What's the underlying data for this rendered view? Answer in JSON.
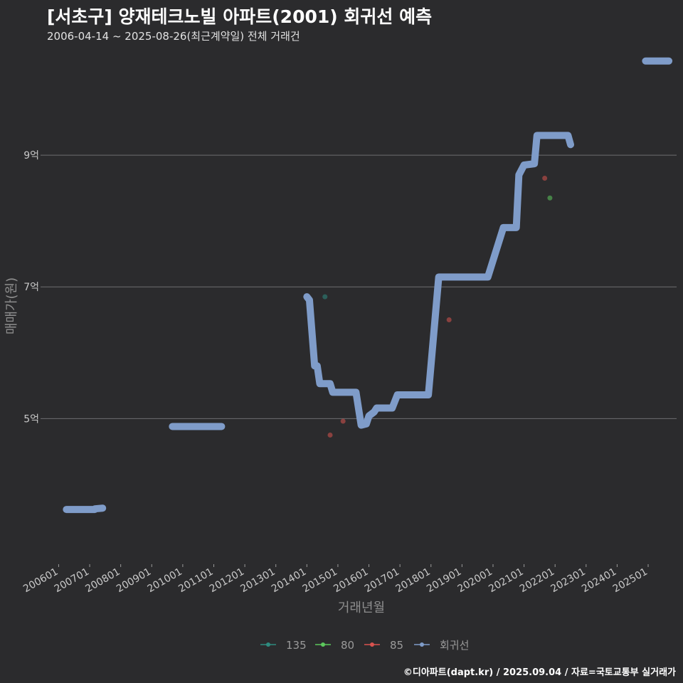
{
  "title": "[서초구] 양재테크노빌 아파트(2001) 회귀선 예측",
  "subtitle": "2006-04-14 ~ 2025-08-26(최근계약일) 전체 거래건",
  "credit": "©디아파트(dapt.kr) / 2025.09.04 / 자료=국토교통부 실거래가",
  "chart_data": {
    "type": "scatter",
    "xlabel": "거래년월",
    "ylabel": "매매가(원)",
    "x_ticks": [
      "200601",
      "200701",
      "200801",
      "200901",
      "201001",
      "201101",
      "201201",
      "201301",
      "201401",
      "201501",
      "201601",
      "201701",
      "201801",
      "201901",
      "202001",
      "202101",
      "202201",
      "202301",
      "202401",
      "202501"
    ],
    "y_ticks": [
      {
        "value": 500000000,
        "label": "5억"
      },
      {
        "value": 700000000,
        "label": "7억"
      },
      {
        "value": 900000000,
        "label": "9억"
      }
    ],
    "xlim": [
      "2005-06",
      "2025-12"
    ],
    "ylim": [
      280000000,
      1060000000
    ],
    "grid": true,
    "legend_position": "bottom",
    "series": [
      {
        "name": "135",
        "kind": "points",
        "color": "#2e8b7f",
        "points": [
          {
            "x": "2014-08",
            "y": 685000000
          }
        ]
      },
      {
        "name": "80",
        "kind": "points",
        "color": "#5cc85c",
        "points": [
          {
            "x": "2021-11",
            "y": 835000000
          }
        ]
      },
      {
        "name": "85",
        "kind": "points",
        "color": "#d9534f",
        "points": [
          {
            "x": "2014-10",
            "y": 475000000
          },
          {
            "x": "2015-03",
            "y": 496000000
          },
          {
            "x": "2018-08",
            "y": 650000000
          },
          {
            "x": "2021-09",
            "y": 865000000
          }
        ]
      },
      {
        "name": "회귀선",
        "kind": "line",
        "color": "#7f9cc9",
        "points": [
          {
            "x": "2006-04",
            "y": 362000000
          },
          {
            "x": "2007-03",
            "y": 362000000
          },
          {
            "x": "2007-03",
            "y": 363000000
          },
          {
            "x": "2007-06",
            "y": 364000000
          },
          {
            "x": "2009-09",
            "y": 488000000
          },
          {
            "x": "2011-04",
            "y": 488000000
          },
          {
            "x": "2014-01",
            "y": 685000000
          },
          {
            "x": "2014-02",
            "y": 680000000
          },
          {
            "x": "2014-04",
            "y": 580000000
          },
          {
            "x": "2014-05",
            "y": 580000000
          },
          {
            "x": "2014-06",
            "y": 553000000
          },
          {
            "x": "2014-10",
            "y": 553000000
          },
          {
            "x": "2014-11",
            "y": 540000000
          },
          {
            "x": "2015-08",
            "y": 540000000
          },
          {
            "x": "2015-10",
            "y": 490000000
          },
          {
            "x": "2015-12",
            "y": 492000000
          },
          {
            "x": "2016-01",
            "y": 504000000
          },
          {
            "x": "2016-03",
            "y": 510000000
          },
          {
            "x": "2016-04",
            "y": 516000000
          },
          {
            "x": "2016-10",
            "y": 516000000
          },
          {
            "x": "2016-12",
            "y": 536000000
          },
          {
            "x": "2017-12",
            "y": 536000000
          },
          {
            "x": "2018-04",
            "y": 715000000
          },
          {
            "x": "2019-11",
            "y": 715000000
          },
          {
            "x": "2020-05",
            "y": 790000000
          },
          {
            "x": "2020-10",
            "y": 790000000
          },
          {
            "x": "2020-11",
            "y": 870000000
          },
          {
            "x": "2021-01",
            "y": 885000000
          },
          {
            "x": "2021-05",
            "y": 887000000
          },
          {
            "x": "2021-06",
            "y": 930000000
          },
          {
            "x": "2022-06",
            "y": 930000000
          },
          {
            "x": "2022-07",
            "y": 916000000
          },
          {
            "x": "2024-12",
            "y": 1043000000
          },
          {
            "x": "2025-09",
            "y": 1043000000
          }
        ]
      }
    ]
  }
}
